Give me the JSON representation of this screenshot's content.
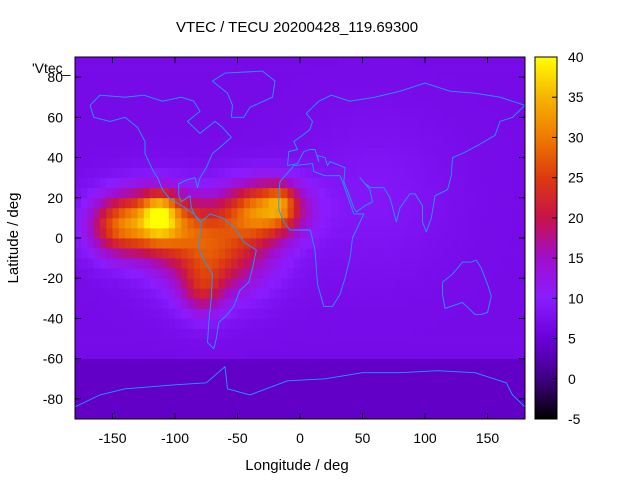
{
  "chart_data": {
    "type": "heatmap",
    "title": "VTEC / TECU 20200428_119.69300",
    "xlabel": "Longitude / deg",
    "ylabel": "Latitude / deg",
    "series_label": "'Vtec_",
    "xlim": [
      -180,
      180
    ],
    "ylim": [
      -90,
      90
    ],
    "x_ticks": [
      "-150",
      "-100",
      "-50",
      "0",
      "50",
      "100",
      "150"
    ],
    "y_ticks": [
      "80",
      "60",
      "40",
      "20",
      "0",
      "-20",
      "-40",
      "-60",
      "-80"
    ],
    "x_tick_values": [
      -150,
      -100,
      -50,
      0,
      50,
      100,
      150
    ],
    "y_tick_values": [
      80,
      60,
      40,
      20,
      0,
      -20,
      -40,
      -60,
      -80
    ],
    "colorbar": {
      "range": [
        -5,
        40
      ],
      "ticks": [
        "40",
        "35",
        "30",
        "25",
        "20",
        "15",
        "10",
        "5",
        "0",
        "-5"
      ],
      "tick_values": [
        40,
        35,
        30,
        25,
        20,
        15,
        10,
        5,
        0,
        -5
      ]
    },
    "background_value": 7,
    "features": [
      {
        "lon": -120,
        "lat": 8,
        "value": 24,
        "sigma_lon": 26,
        "sigma_lat": 11
      },
      {
        "lon": -112,
        "lat": 13,
        "value": 12,
        "sigma_lon": 9,
        "sigma_lat": 7
      },
      {
        "lon": -68,
        "lat": -6,
        "value": 18,
        "sigma_lon": 30,
        "sigma_lat": 15
      },
      {
        "lon": -78,
        "lat": -26,
        "value": 9,
        "sigma_lon": 12,
        "sigma_lat": 9
      },
      {
        "lon": -28,
        "lat": 14,
        "value": 22,
        "sigma_lon": 22,
        "sigma_lat": 10
      },
      {
        "lon": -15,
        "lat": 18,
        "value": 8,
        "sigma_lon": 8,
        "sigma_lat": 6
      },
      {
        "lon": -150,
        "lat": 5,
        "value": 8,
        "sigma_lon": 14,
        "sigma_lat": 10
      },
      {
        "lon": 60,
        "lat": 20,
        "value": 2,
        "sigma_lon": 40,
        "sigma_lat": 25
      }
    ],
    "grid": false,
    "colors": {
      "colormap": [
        "#000000",
        "#400082",
        "#6a00d9",
        "#8a1cff",
        "#a10ecc",
        "#c8124b",
        "#dd3a0e",
        "#ef7a00",
        "#f6b400",
        "#ffff00"
      ],
      "coastline": "#1c9cff",
      "frame": "#000000"
    }
  }
}
